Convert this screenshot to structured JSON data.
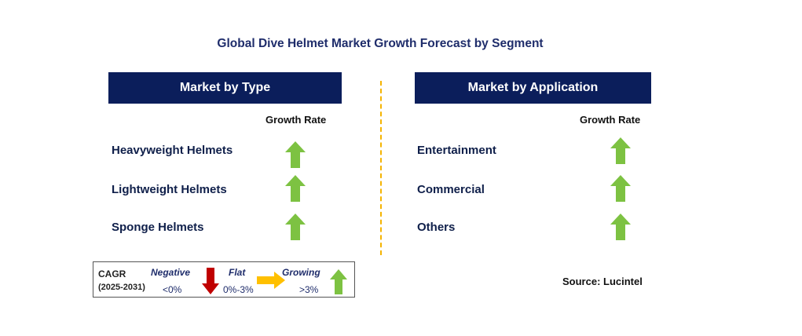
{
  "title": "Global Dive Helmet Market Growth Forecast by Segment",
  "colors": {
    "header_bg": "#0b1e5b",
    "up_arrow": "#7dc242",
    "down_arrow": "#c00000",
    "flat_arrow": "#ffc000",
    "divider": "#f5b400"
  },
  "left": {
    "header": "Market by Type",
    "growth_label": "Growth Rate",
    "rows": [
      {
        "label": "Heavyweight Helmets",
        "trend": "growing",
        "icon": "up-arrow-icon"
      },
      {
        "label": "Lightweight Helmets",
        "trend": "growing",
        "icon": "up-arrow-icon"
      },
      {
        "label": "Sponge Helmets",
        "trend": "growing",
        "icon": "up-arrow-icon"
      }
    ]
  },
  "right": {
    "header": "Market by Application",
    "growth_label": "Growth Rate",
    "rows": [
      {
        "label": "Entertainment",
        "trend": "growing",
        "icon": "up-arrow-icon"
      },
      {
        "label": "Commercial",
        "trend": "growing",
        "icon": "up-arrow-icon"
      },
      {
        "label": "Others",
        "trend": "growing",
        "icon": "up-arrow-icon"
      }
    ]
  },
  "legend": {
    "cagr_label": "CAGR",
    "period": "(2025-2031)",
    "negative_label": "Negative",
    "negative_value": "<0%",
    "flat_label": "Flat",
    "flat_value": "0%-3%",
    "growing_label": "Growing",
    "growing_value": ">3%"
  },
  "source": "Source: Lucintel"
}
